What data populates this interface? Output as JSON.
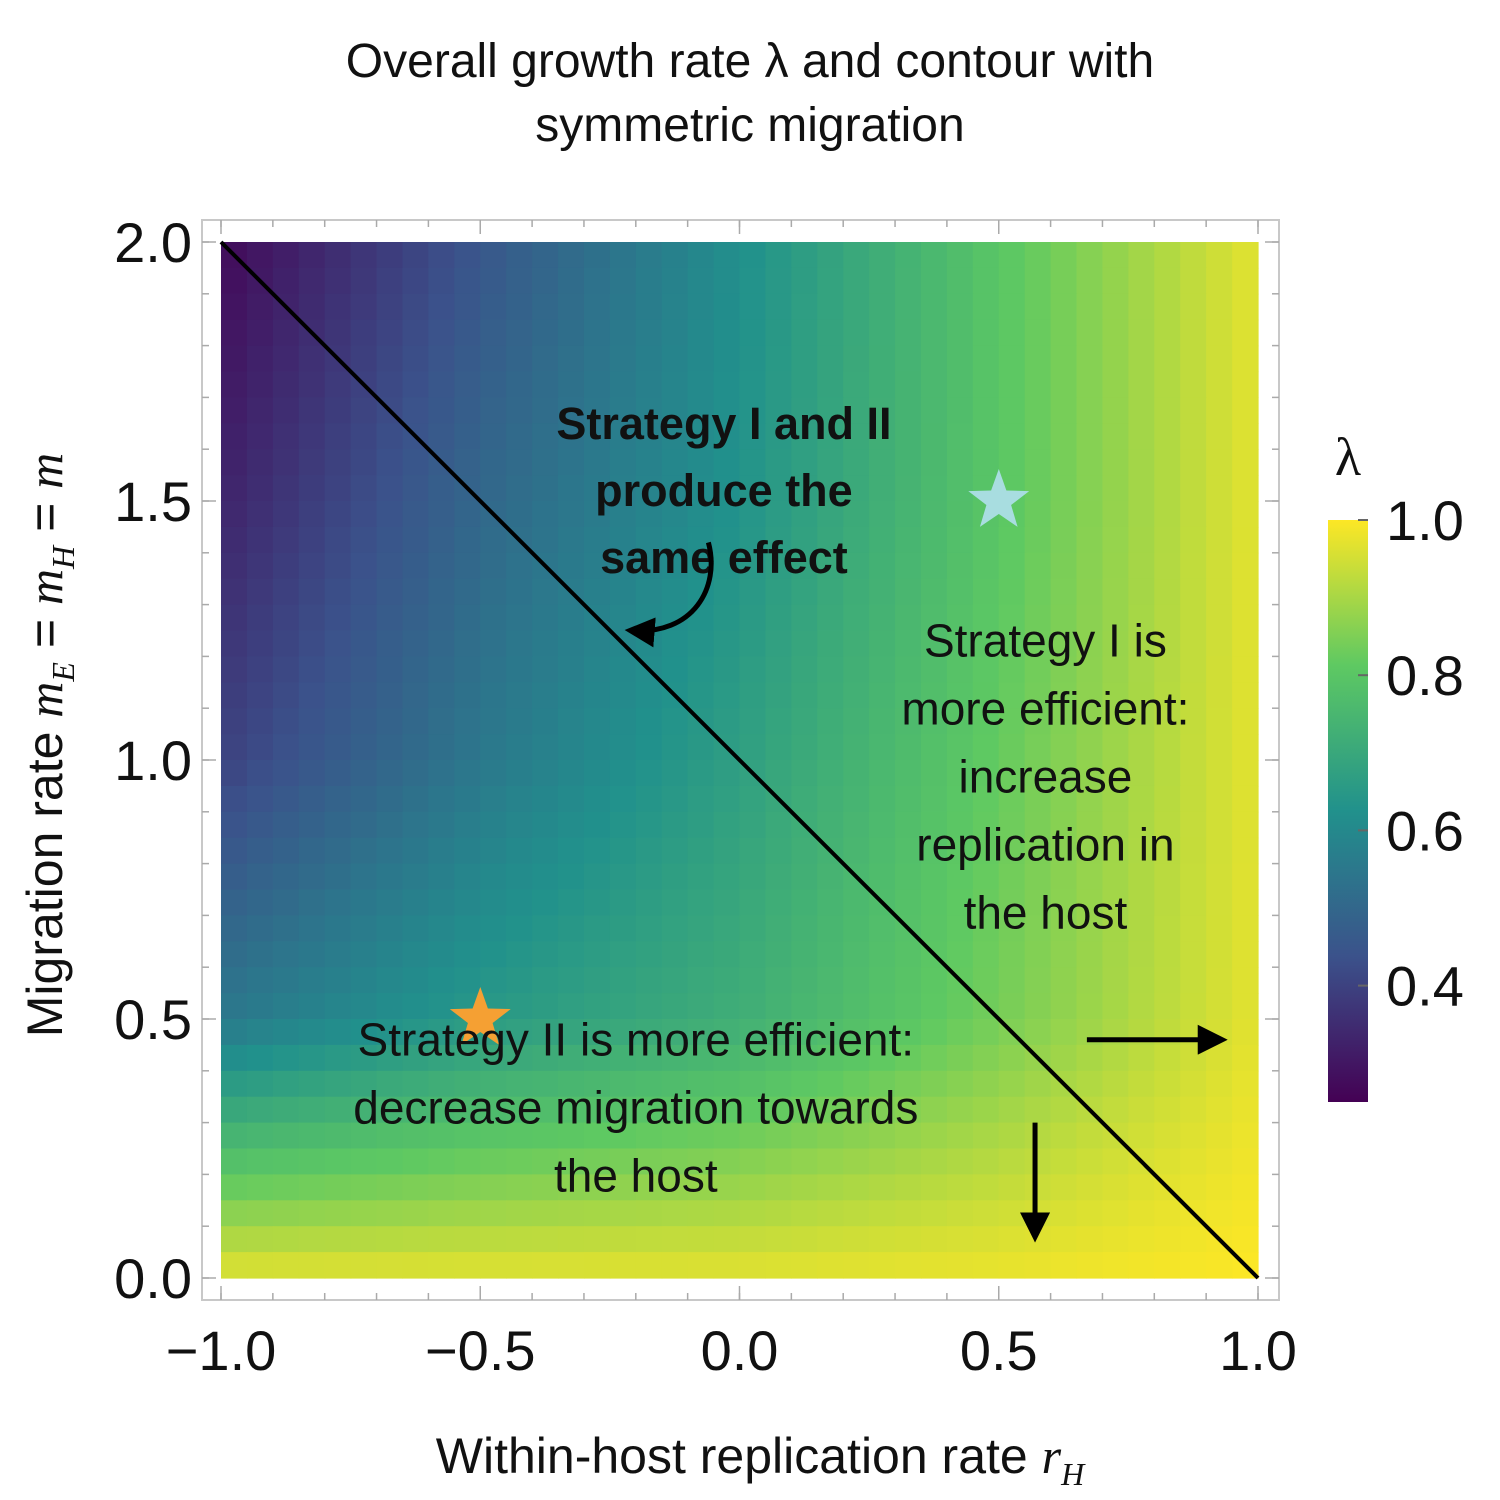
{
  "title_lines": [
    "Overall growth rate λ and contour with",
    "symmetric migration"
  ],
  "chart_data": {
    "type": "heatmap",
    "title": "Overall growth rate λ and contour with symmetric migration",
    "xlabel": "Within-host replication rate r_H",
    "xlabel_main": "Within-host replication rate ",
    "xlabel_var": "r",
    "xlabel_sub": "H",
    "ylabel": "Migration rate m_E = m_H = m",
    "ylabel_parts": [
      {
        "t": "Migration rate ",
        "it": false
      },
      {
        "t": "m",
        "it": true
      },
      {
        "t": "E",
        "it": true,
        "sub": true
      },
      {
        "t": " = ",
        "it": false
      },
      {
        "t": "m",
        "it": true
      },
      {
        "t": "H",
        "it": true,
        "sub": true
      },
      {
        "t": " = ",
        "it": false
      },
      {
        "t": "m",
        "it": true
      }
    ],
    "xlim": [
      -1.0,
      1.0
    ],
    "ylim": [
      0.0,
      2.0
    ],
    "xticks": [
      -1.0,
      -0.5,
      0.0,
      0.5,
      1.0
    ],
    "xtick_labels": [
      "−1.0",
      "−0.5",
      "0.0",
      "0.5",
      "1.0"
    ],
    "yticks": [
      0.0,
      0.5,
      1.0,
      1.5,
      2.0
    ],
    "ytick_labels": [
      "0.0",
      "0.5",
      "1.0",
      "1.5",
      "2.0"
    ],
    "colorbar": {
      "label": "λ",
      "range": [
        0.25,
        1.0
      ],
      "ticks": [
        0.4,
        0.6,
        0.8,
        1.0
      ],
      "tick_labels": [
        "0.4",
        "0.6",
        "0.8",
        "1.0"
      ],
      "colormap": [
        "#440154",
        "#3b528b",
        "#21918c",
        "#5ec962",
        "#fde725"
      ]
    },
    "lambda_grid": {
      "x": [
        -1.0,
        -0.5,
        0.0,
        0.5,
        1.0
      ],
      "y": [
        2.0,
        1.5,
        1.0,
        0.5,
        0.0
      ],
      "values": [
        [
          0.27,
          0.45,
          0.62,
          0.8,
          0.97
        ],
        [
          0.33,
          0.5,
          0.63,
          0.8,
          0.97
        ],
        [
          0.4,
          0.55,
          0.67,
          0.82,
          0.97
        ],
        [
          0.55,
          0.65,
          0.72,
          0.84,
          0.97
        ],
        [
          0.97,
          0.97,
          0.97,
          0.98,
          1.0
        ]
      ]
    },
    "contour_line": {
      "x": [
        -1.0,
        1.0
      ],
      "y": [
        2.0,
        0.0
      ]
    },
    "markers": [
      {
        "name": "star-orange",
        "x": -0.5,
        "y": 0.5,
        "color": "#f5a033"
      },
      {
        "name": "star-cyan",
        "x": 0.5,
        "y": 1.5,
        "color": "#a8dde0"
      }
    ],
    "annotations": {
      "contour": {
        "lines": [
          "Strategy I and II",
          "produce the",
          "same effect"
        ],
        "x": -0.03,
        "y": 1.62
      },
      "strategy_1": {
        "lines": [
          "Strategy I is",
          "more efficient:",
          "increase",
          "replication in",
          "the host"
        ],
        "x": 0.59,
        "y": 1.2
      },
      "strategy_2": {
        "lines": [
          "Strategy II is more efficient:",
          "decrease migration towards",
          "the host"
        ],
        "x": -0.2,
        "y": 0.43
      }
    },
    "arrows": {
      "right": {
        "from": [
          0.67,
          0.46
        ],
        "to": [
          0.93,
          0.46
        ]
      },
      "down": {
        "from": [
          0.57,
          0.3
        ],
        "to": [
          0.57,
          0.08
        ]
      },
      "curved": {
        "from": [
          -0.06,
          1.42
        ],
        "to": [
          -0.21,
          1.25
        ]
      }
    }
  }
}
